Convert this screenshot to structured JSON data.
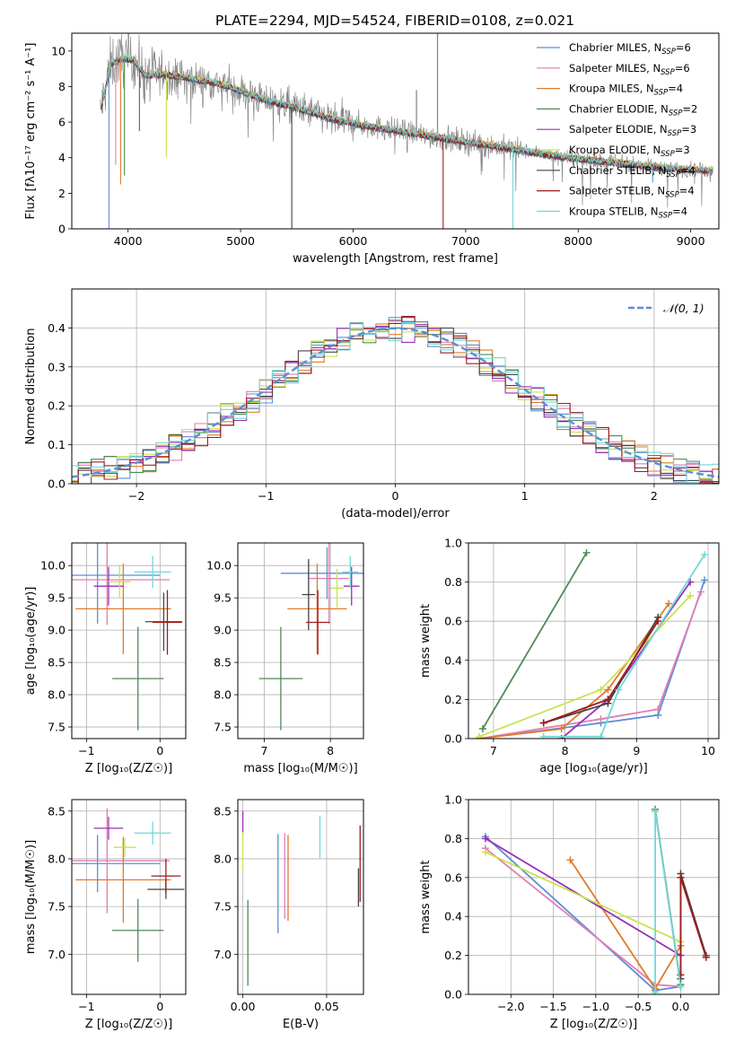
{
  "figure_title": "PLATE=2294, MJD=54524, FIBERID=0108, z=0.021",
  "colors": {
    "Chabrier MILES": "#5b8fd6",
    "Salpeter MILES": "#e07fb4",
    "Kroupa MILES": "#e07b2c",
    "Chabrier ELODIE": "#4d8a57",
    "Salpeter ELODIE": "#9b2fb4",
    "Kroupa ELODIE": "#c8e34e",
    "Chabrier STELIB": "#444444",
    "Salpeter STELIB": "#a01b1b",
    "Kroupa STELIB": "#72d8d8",
    "observed": "#888888",
    "normal": "#5b8fd6"
  },
  "chart_data": [
    {
      "id": "spectrum",
      "type": "line",
      "title": "PLATE=2294, MJD=54524, FIBERID=0108, z=0.021",
      "xlabel": "wavelength [Angstrom, rest frame]",
      "ylabel": "Flux [fλ10⁻¹⁷ erg cm⁻² s⁻¹ A⁻¹]",
      "xlim": [
        3500,
        9250
      ],
      "ylim": [
        0,
        11
      ],
      "xticks": [
        4000,
        5000,
        6000,
        7000,
        8000,
        9000
      ],
      "yticks": [
        0,
        2,
        4,
        6,
        8,
        10
      ],
      "legend": "top-right",
      "legend_entries": [
        {
          "label": "Chabrier MILES, N",
          "sub": "SSP",
          "suffix": "=6"
        },
        {
          "label": "Salpeter MILES, N",
          "sub": "SSP",
          "suffix": "=6"
        },
        {
          "label": "Kroupa MILES, N",
          "sub": "SSP",
          "suffix": "=4"
        },
        {
          "label": "Chabrier ELODIE, N",
          "sub": "SSP",
          "suffix": "=2"
        },
        {
          "label": "Salpeter ELODIE, N",
          "sub": "SSP",
          "suffix": "=3"
        },
        {
          "label": "Kroupa ELODIE, N",
          "sub": "SSP",
          "suffix": "=3"
        },
        {
          "label": "Chabrier STELIB, N",
          "sub": "SSP",
          "suffix": "=4"
        },
        {
          "label": "Salpeter STELIB, N",
          "sub": "SSP",
          "suffix": "=4"
        },
        {
          "label": "Kroupa STELIB, N",
          "sub": "SSP",
          "suffix": "=4"
        }
      ],
      "continuum": {
        "x": [
          3750,
          3850,
          3950,
          4050,
          4150,
          4300,
          4500,
          4700,
          4900,
          5100,
          5300,
          5500,
          5800,
          6100,
          6400,
          6700,
          7000,
          7300,
          7600,
          7900,
          8200,
          8500,
          8800,
          9100,
          9200
        ],
        "y": [
          6.5,
          9.3,
          9.6,
          9.5,
          8.6,
          8.7,
          8.5,
          8.3,
          8.0,
          7.5,
          7.1,
          6.8,
          6.2,
          5.8,
          5.5,
          5.2,
          4.9,
          4.6,
          4.3,
          4.0,
          3.8,
          3.6,
          3.4,
          3.3,
          3.25
        ]
      },
      "dips": [
        {
          "x": 3830,
          "y": 0.0
        },
        {
          "x": 3890,
          "y": 3.6
        },
        {
          "x": 3934,
          "y": 2.5
        },
        {
          "x": 3968,
          "y": 3.0
        },
        {
          "x": 4101,
          "y": 5.5
        },
        {
          "x": 4340,
          "y": 4.0
        },
        {
          "x": 5455,
          "y": 0.0
        },
        {
          "x": 6800,
          "y": 0.0
        },
        {
          "x": 7420,
          "y": 0.0
        },
        {
          "x": 8662,
          "y": 2.6
        }
      ],
      "spikes": [
        {
          "x": 6563,
          "y": 7.8
        },
        {
          "x": 6750,
          "y": 11.0
        }
      ]
    },
    {
      "id": "residuals",
      "type": "line",
      "xlabel": "(data-model)/error",
      "ylabel": "Normed distribution",
      "xlim": [
        -2.5,
        2.5
      ],
      "ylim": [
        0,
        0.5
      ],
      "xticks": [
        -2,
        -1,
        0,
        1,
        2
      ],
      "yticks": [
        0.0,
        0.1,
        0.2,
        0.3,
        0.4
      ],
      "legend": "top-right",
      "legend_label": "𝒩(0, 1)",
      "bin_width": 0.1,
      "curve": "normal(0,1)"
    },
    {
      "id": "age_vs_Z",
      "type": "scatter",
      "xlabel": "Z [log₁₀(Z/Z☉)]",
      "ylabel": "age  [log₁₀(age/yr)]",
      "xlim": [
        -1.2,
        0.35
      ],
      "ylim": [
        7.32,
        10.35
      ],
      "xticks": [
        -1,
        0
      ],
      "yticks": [
        7.5,
        8.0,
        8.5,
        9.0,
        9.5,
        10.0
      ],
      "points": [
        {
          "model": "Chabrier MILES",
          "x": -0.85,
          "xerr": 0.85,
          "y": 9.85,
          "yerr": 0.75
        },
        {
          "model": "Salpeter MILES",
          "x": -0.72,
          "xerr": 0.85,
          "y": 9.78,
          "yerr": 0.7
        },
        {
          "model": "Kroupa MILES",
          "x": -0.5,
          "xerr": 0.65,
          "y": 9.33,
          "yerr": 0.7
        },
        {
          "model": "Chabrier ELODIE",
          "x": -0.3,
          "xerr": 0.35,
          "y": 8.25,
          "yerr": 0.8
        },
        {
          "model": "Salpeter ELODIE",
          "x": -0.7,
          "xerr": 0.2,
          "y": 9.68,
          "yerr": 0.3
        },
        {
          "model": "Kroupa ELODIE",
          "x": -0.55,
          "xerr": 0.15,
          "y": 9.75,
          "yerr": 0.25
        },
        {
          "model": "Chabrier STELIB",
          "x": 0.05,
          "xerr": 0.25,
          "y": 9.13,
          "yerr": 0.45
        },
        {
          "model": "Salpeter STELIB",
          "x": 0.1,
          "xerr": 0.2,
          "y": 9.12,
          "yerr": 0.5
        },
        {
          "model": "Kroupa STELIB",
          "x": -0.1,
          "xerr": 0.25,
          "y": 9.9,
          "yerr": 0.25
        }
      ]
    },
    {
      "id": "age_vs_mass",
      "type": "scatter",
      "xlabel": "mass [log₁₀(M/M☉)]",
      "ylabel": "",
      "xlim": [
        6.6,
        8.5
      ],
      "ylim": [
        7.32,
        10.35
      ],
      "xticks": [
        7,
        8
      ],
      "yticks": [
        7.5,
        8.0,
        8.5,
        9.0,
        9.5,
        10.0
      ],
      "points": [
        {
          "model": "Chabrier MILES",
          "x": 7.95,
          "xerr": 0.7,
          "y": 9.88,
          "yerr": 0.4
        },
        {
          "model": "Salpeter MILES",
          "x": 7.98,
          "xerr": 0.3,
          "y": 9.8,
          "yerr": 0.7
        },
        {
          "model": "Kroupa MILES",
          "x": 7.8,
          "xerr": 0.45,
          "y": 9.33,
          "yerr": 0.7
        },
        {
          "model": "Chabrier ELODIE",
          "x": 7.25,
          "xerr": 0.33,
          "y": 8.25,
          "yerr": 0.8
        },
        {
          "model": "Salpeter ELODIE",
          "x": 8.32,
          "xerr": 0.12,
          "y": 9.68,
          "yerr": 0.3
        },
        {
          "model": "Kroupa ELODIE",
          "x": 8.1,
          "xerr": 0.1,
          "y": 9.65,
          "yerr": 0.3
        },
        {
          "model": "Chabrier STELIB",
          "x": 7.67,
          "xerr": 0.1,
          "y": 9.55,
          "yerr": 0.55
        },
        {
          "model": "Salpeter STELIB",
          "x": 7.81,
          "xerr": 0.18,
          "y": 9.12,
          "yerr": 0.5
        },
        {
          "model": "Kroupa STELIB",
          "x": 8.3,
          "xerr": 0.12,
          "y": 9.9,
          "yerr": 0.25
        }
      ]
    },
    {
      "id": "weight_vs_age",
      "type": "line",
      "xlabel": "age  [log₁₀(age/yr)]",
      "ylabel": "mass weight",
      "xlim": [
        6.65,
        10.15
      ],
      "ylim": [
        0,
        1
      ],
      "xticks": [
        7,
        8,
        9,
        10
      ],
      "yticks": [
        0.0,
        0.2,
        0.4,
        0.6,
        0.8,
        1.0
      ],
      "series": [
        {
          "model": "Chabrier MILES",
          "x": [
            6.8,
            8.5,
            9.3,
            9.95
          ],
          "y": [
            0.0,
            0.08,
            0.12,
            0.81
          ]
        },
        {
          "model": "Salpeter MILES",
          "x": [
            6.8,
            8.5,
            9.3,
            9.9
          ],
          "y": [
            0.0,
            0.1,
            0.15,
            0.75
          ]
        },
        {
          "model": "Kroupa MILES",
          "x": [
            6.8,
            7.95,
            8.6,
            9.45
          ],
          "y": [
            0.0,
            0.05,
            0.25,
            0.69
          ]
        },
        {
          "model": "Chabrier ELODIE",
          "x": [
            6.85,
            8.3
          ],
          "y": [
            0.05,
            0.95
          ]
        },
        {
          "model": "Salpeter ELODIE",
          "x": [
            7.95,
            8.6,
            9.75
          ],
          "y": [
            0.0,
            0.2,
            0.8
          ]
        },
        {
          "model": "Kroupa ELODIE",
          "x": [
            6.8,
            8.5,
            9.75
          ],
          "y": [
            0.01,
            0.25,
            0.73
          ]
        },
        {
          "model": "Chabrier STELIB",
          "x": [
            7.7,
            8.6,
            9.3
          ],
          "y": [
            0.08,
            0.18,
            0.62
          ]
        },
        {
          "model": "Salpeter STELIB",
          "x": [
            7.7,
            8.6,
            9.3
          ],
          "y": [
            0.08,
            0.2,
            0.6
          ]
        },
        {
          "model": "Kroupa STELIB",
          "x": [
            7.7,
            8.5,
            8.75,
            9.95
          ],
          "y": [
            0.01,
            0.01,
            0.25,
            0.94
          ]
        }
      ]
    },
    {
      "id": "mass_vs_Z",
      "type": "scatter",
      "xlabel": "Z [log₁₀(Z/Z☉)]",
      "ylabel": "mass [log₁₀(M/M☉)]",
      "xlim": [
        -1.2,
        0.35
      ],
      "ylim": [
        6.58,
        8.62
      ],
      "xticks": [
        -1,
        0
      ],
      "yticks": [
        7.0,
        7.5,
        8.0,
        8.5
      ],
      "points": [
        {
          "model": "Chabrier MILES",
          "x": -0.85,
          "xerr": 0.85,
          "y": 7.95,
          "yerr": 0.3
        },
        {
          "model": "Salpeter MILES",
          "x": -0.72,
          "xerr": 0.85,
          "y": 7.98,
          "yerr": 0.55
        },
        {
          "model": "Kroupa MILES",
          "x": -0.5,
          "xerr": 0.65,
          "y": 7.78,
          "yerr": 0.45
        },
        {
          "model": "Chabrier ELODIE",
          "x": -0.3,
          "xerr": 0.35,
          "y": 7.25,
          "yerr": 0.33
        },
        {
          "model": "Salpeter ELODIE",
          "x": -0.7,
          "xerr": 0.2,
          "y": 8.32,
          "yerr": 0.12
        },
        {
          "model": "Kroupa ELODIE",
          "x": -0.48,
          "xerr": 0.15,
          "y": 8.12,
          "yerr": 0.1
        },
        {
          "model": "Chabrier STELIB",
          "x": 0.08,
          "xerr": 0.25,
          "y": 7.68,
          "yerr": 0.1
        },
        {
          "model": "Salpeter STELIB",
          "x": 0.08,
          "xerr": 0.2,
          "y": 7.82,
          "yerr": 0.18
        },
        {
          "model": "Kroupa STELIB",
          "x": -0.1,
          "xerr": 0.25,
          "y": 8.27,
          "yerr": 0.12
        }
      ]
    },
    {
      "id": "mass_vs_EBV",
      "type": "scatter",
      "xlabel": "E(B-V)",
      "ylabel": "",
      "xlim": [
        -0.003,
        0.072
      ],
      "ylim": [
        6.58,
        8.62
      ],
      "xticks": [
        0.0,
        0.05
      ],
      "yticks": [
        7.0,
        7.5,
        8.0,
        8.5
      ],
      "points": [
        {
          "model": "Chabrier MILES",
          "x": 0.021,
          "y": 7.74,
          "yerr": 0.52
        },
        {
          "model": "Salpeter MILES",
          "x": 0.025,
          "y": 7.82,
          "yerr": 0.45
        },
        {
          "model": "Kroupa MILES",
          "x": 0.027,
          "y": 7.8,
          "yerr": 0.45
        },
        {
          "model": "Chabrier ELODIE",
          "x": 0.003,
          "y": 7.12,
          "yerr": 0.45
        },
        {
          "model": "Salpeter ELODIE",
          "x": 0.0,
          "y": 8.38,
          "yerr": 0.12
        },
        {
          "model": "Kroupa ELODIE",
          "x": 0.0,
          "y": 8.08,
          "yerr": 0.2
        },
        {
          "model": "Chabrier STELIB",
          "x": 0.069,
          "y": 7.7,
          "yerr": 0.2
        },
        {
          "model": "Salpeter STELIB",
          "x": 0.07,
          "y": 7.95,
          "yerr": 0.4
        },
        {
          "model": "Kroupa STELIB",
          "x": 0.046,
          "y": 8.23,
          "yerr": 0.22
        }
      ]
    },
    {
      "id": "weight_vs_Z",
      "type": "line",
      "xlabel": "Z [log₁₀(Z/Z☉)]",
      "ylabel": "mass weight",
      "xlim": [
        -2.5,
        0.45
      ],
      "ylim": [
        0,
        1
      ],
      "xticks": [
        -2.0,
        -1.5,
        -1.0,
        -0.5,
        0.0
      ],
      "yticks": [
        0.0,
        0.2,
        0.4,
        0.6,
        0.8,
        1.0
      ],
      "series": [
        {
          "model": "Chabrier MILES",
          "x": [
            -2.3,
            -0.3,
            0.0
          ],
          "y": [
            0.81,
            0.02,
            0.04
          ]
        },
        {
          "model": "Salpeter MILES",
          "x": [
            -2.3,
            -0.3,
            0.0
          ],
          "y": [
            0.75,
            0.05,
            0.04
          ]
        },
        {
          "model": "Kroupa MILES",
          "x": [
            -1.3,
            -0.3,
            0.0
          ],
          "y": [
            0.69,
            0.03,
            0.25
          ]
        },
        {
          "model": "Chabrier ELODIE",
          "x": [
            -0.3,
            0.0
          ],
          "y": [
            0.95,
            0.05
          ]
        },
        {
          "model": "Salpeter ELODIE",
          "x": [
            -2.3,
            0.0
          ],
          "y": [
            0.8,
            0.2
          ]
        },
        {
          "model": "Kroupa ELODIE",
          "x": [
            -2.3,
            0.0
          ],
          "y": [
            0.73,
            0.27
          ]
        },
        {
          "model": "Chabrier STELIB",
          "x": [
            0.0,
            0.0,
            0.3
          ],
          "y": [
            0.08,
            0.62,
            0.2
          ]
        },
        {
          "model": "Salpeter STELIB",
          "x": [
            0.0,
            0.0,
            0.3
          ],
          "y": [
            0.1,
            0.6,
            0.19
          ]
        },
        {
          "model": "Kroupa STELIB",
          "x": [
            -0.3,
            -0.3,
            0.0
          ],
          "y": [
            0.01,
            0.94,
            0.04
          ]
        }
      ]
    }
  ]
}
